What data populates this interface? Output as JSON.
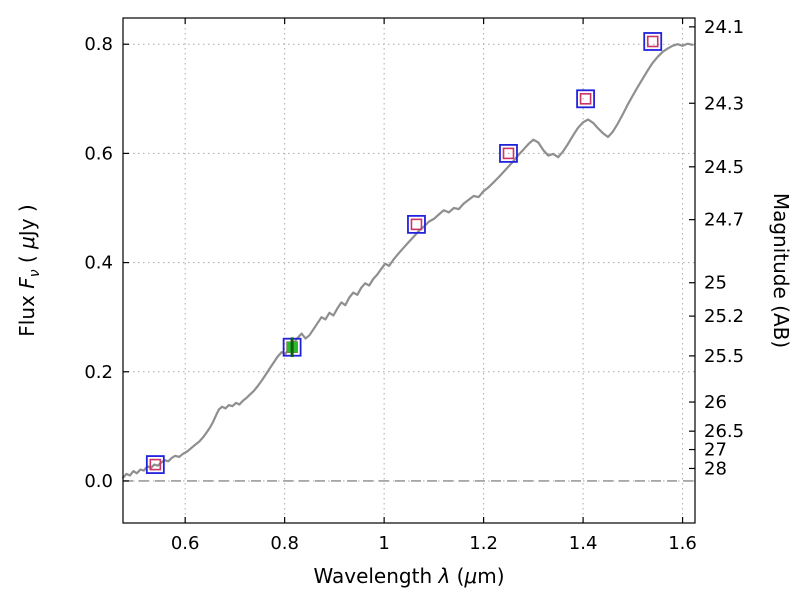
{
  "figure": {
    "background": "#ffffff"
  },
  "chart_data": {
    "type": "line",
    "title": "",
    "xlabel": "Wavelength λ (μm)",
    "ylabel": "Flux F_ν ( μJy )",
    "ylabel_right": "Magnitude (AB)",
    "xlabel_parts": [
      {
        "t": "Wavelength  ",
        "style": "normal"
      },
      {
        "t": "λ",
        "style": "italic"
      },
      {
        "t": " (",
        "style": "normal"
      },
      {
        "t": "μ",
        "style": "italic"
      },
      {
        "t": "m)",
        "style": "normal"
      }
    ],
    "ylabel_left_parts": [
      {
        "t": "Flux  ",
        "style": "normal"
      },
      {
        "t": "F",
        "style": "italic"
      },
      {
        "t": "ν",
        "style": "sub-italic"
      },
      {
        "t": "  ( ",
        "style": "normal"
      },
      {
        "t": "μ",
        "style": "italic"
      },
      {
        "t": "Jy )",
        "style": "normal"
      }
    ],
    "xlim": [
      0.475,
      1.625
    ],
    "ylim": [
      -0.077,
      0.848
    ],
    "grid": {
      "on": true,
      "style": "dotted",
      "color": "#aaaaaa"
    },
    "legend": "none",
    "xticks": {
      "values": [
        0.6,
        0.8,
        1.0,
        1.2,
        1.4,
        1.6
      ],
      "labels": [
        "0.6",
        "0.8",
        "1",
        "1.2",
        "1.4",
        "1.6"
      ]
    },
    "yticks_left": {
      "values": [
        0.0,
        0.2,
        0.4,
        0.6,
        0.8
      ],
      "labels": [
        "0.0",
        "0.2",
        "0.4",
        "0.6",
        "0.8"
      ]
    },
    "yticks_right": {
      "magnitudes": [
        24.1,
        24.3,
        24.5,
        24.7,
        25,
        25.2,
        25.5,
        26,
        26.5,
        27,
        28
      ],
      "labels": [
        "24.1",
        "24.3",
        "24.5",
        "24.7",
        "25",
        "25.2",
        "25.5",
        "26",
        "26.5",
        "27",
        "28"
      ]
    },
    "ab_zeropoint_ujy": 23.9,
    "zero_line": {
      "flux": 0.0,
      "color": "#8a8a8a",
      "dash": "10 6"
    },
    "spectrum": {
      "name": "model-spectrum",
      "color": "#8f8f8f",
      "width": 2.2,
      "x": [
        0.475,
        0.482,
        0.489,
        0.496,
        0.503,
        0.51,
        0.517,
        0.524,
        0.531,
        0.538,
        0.545,
        0.552,
        0.559,
        0.566,
        0.573,
        0.58,
        0.588,
        0.596,
        0.604,
        0.612,
        0.62,
        0.628,
        0.636,
        0.644,
        0.65,
        0.656,
        0.662,
        0.668,
        0.674,
        0.681,
        0.688,
        0.695,
        0.702,
        0.709,
        0.716,
        0.723,
        0.73,
        0.738,
        0.746,
        0.754,
        0.762,
        0.77,
        0.778,
        0.786,
        0.794,
        0.802,
        0.81,
        0.818,
        0.826,
        0.834,
        0.842,
        0.85,
        0.858,
        0.866,
        0.874,
        0.882,
        0.89,
        0.898,
        0.906,
        0.914,
        0.922,
        0.93,
        0.938,
        0.946,
        0.954,
        0.962,
        0.97,
        0.978,
        0.986,
        0.994,
        1.002,
        1.01,
        1.02,
        1.03,
        1.04,
        1.05,
        1.06,
        1.07,
        1.08,
        1.09,
        1.1,
        1.11,
        1.12,
        1.13,
        1.14,
        1.15,
        1.16,
        1.17,
        1.18,
        1.19,
        1.2,
        1.21,
        1.22,
        1.23,
        1.24,
        1.25,
        1.26,
        1.27,
        1.28,
        1.29,
        1.3,
        1.31,
        1.32,
        1.33,
        1.34,
        1.35,
        1.36,
        1.37,
        1.38,
        1.39,
        1.4,
        1.41,
        1.42,
        1.43,
        1.44,
        1.45,
        1.46,
        1.47,
        1.48,
        1.49,
        1.5,
        1.51,
        1.52,
        1.53,
        1.54,
        1.55,
        1.56,
        1.57,
        1.58,
        1.59,
        1.6,
        1.61,
        1.62
      ],
      "y": [
        0.006,
        0.013,
        0.01,
        0.018,
        0.014,
        0.021,
        0.019,
        0.027,
        0.024,
        0.03,
        0.028,
        0.034,
        0.038,
        0.036,
        0.042,
        0.046,
        0.044,
        0.05,
        0.054,
        0.06,
        0.066,
        0.072,
        0.08,
        0.09,
        0.098,
        0.108,
        0.12,
        0.131,
        0.136,
        0.133,
        0.139,
        0.137,
        0.143,
        0.14,
        0.147,
        0.152,
        0.158,
        0.165,
        0.174,
        0.184,
        0.195,
        0.206,
        0.217,
        0.228,
        0.236,
        0.233,
        0.245,
        0.252,
        0.262,
        0.27,
        0.261,
        0.267,
        0.278,
        0.289,
        0.3,
        0.296,
        0.308,
        0.303,
        0.316,
        0.327,
        0.322,
        0.336,
        0.345,
        0.341,
        0.354,
        0.362,
        0.358,
        0.37,
        0.378,
        0.388,
        0.398,
        0.394,
        0.407,
        0.418,
        0.428,
        0.438,
        0.448,
        0.458,
        0.466,
        0.475,
        0.48,
        0.488,
        0.496,
        0.492,
        0.5,
        0.498,
        0.508,
        0.515,
        0.522,
        0.52,
        0.531,
        0.538,
        0.547,
        0.556,
        0.566,
        0.576,
        0.586,
        0.597,
        0.607,
        0.617,
        0.625,
        0.62,
        0.606,
        0.596,
        0.599,
        0.593,
        0.604,
        0.618,
        0.633,
        0.647,
        0.657,
        0.662,
        0.656,
        0.646,
        0.637,
        0.63,
        0.64,
        0.655,
        0.672,
        0.69,
        0.706,
        0.722,
        0.737,
        0.752,
        0.766,
        0.777,
        0.786,
        0.792,
        0.797,
        0.8,
        0.797,
        0.801,
        0.799
      ]
    },
    "photometry": {
      "points": [
        {
          "x": 0.54,
          "flux": 0.03
        },
        {
          "x": 0.815,
          "flux": 0.245
        },
        {
          "x": 1.065,
          "flux": 0.47
        },
        {
          "x": 1.25,
          "flux": 0.6
        },
        {
          "x": 1.405,
          "flux": 0.7
        },
        {
          "x": 1.54,
          "flux": 0.805
        }
      ],
      "outer_marker": {
        "shape": "square-open",
        "color": "#2222dd",
        "size": 17,
        "stroke": 1.8
      },
      "inner_marker": {
        "shape": "square-open",
        "color": "#cc3366",
        "size": 10,
        "stroke": 1.6
      }
    },
    "observed": {
      "point": {
        "x": 0.815,
        "flux": 0.245
      },
      "marker": {
        "shape": "square-filled",
        "color": "#2db82d",
        "size": 11
      },
      "errorbar": {
        "color": "#0e5f0e",
        "flux_err": 0.018,
        "width": 3
      }
    }
  }
}
